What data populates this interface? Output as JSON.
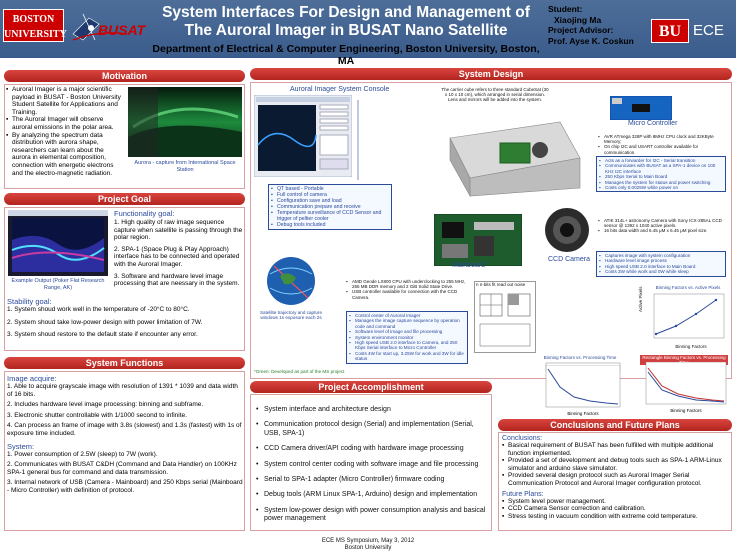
{
  "header": {
    "bu_logo": "BOSTON\nUNIVERSITY",
    "busat": "BUSAT",
    "title": "System Interfaces For Design and Management of The Auroral Imager in BUSAT Nano Satellite",
    "department": "Department of Electrical & Computer Engineering, Boston University, Boston, MA",
    "student_label": "Student:",
    "student_name": "Xiaojing Ma",
    "advisor_label": "Project Advisor:",
    "advisor_name": "Prof. Ayse K. Coskun",
    "bu_short": "BU",
    "ece": "ECE"
  },
  "motivation": {
    "heading": "Motivation",
    "bullets": [
      "Auroral Imager is a major scientific payload in BUSAT - Boston University Student Satellite for Applications and Training.",
      "The Auroral Imager will observe auroral emissions in the polar area.",
      "By analyzing the spectrum data distribution with aurora shape, researchers can learn about the aurora in elemental composition, connection with energetic electrons and the electro-magnetic radiation."
    ],
    "caption": "Aurora - capture from International Space Station"
  },
  "goal": {
    "heading": "Project Goal",
    "functionality_label": "Functionality goal:",
    "functionality": [
      "1. High quality of raw image sequence capture when satellite is passing through the polar region.",
      "2. SPA-1 (Space Plug & Play Approach) interface has to be connected and operated with the Auroral Imager.",
      "3. Software and hardware level image processing that are neessary in the system."
    ],
    "example_caption": "Example Output (Poker Flat Research Range, AK)",
    "stability_label": "Stability goal:",
    "stability": [
      "1. System shoud work well in the temperature of -20°C to 80°C.",
      "2. System shoud take low-power design with power limitation of 7W.",
      "3. System shoud restore to the default state if encounter any error."
    ]
  },
  "functions": {
    "heading": "System Functions",
    "acquire_label": "Image acquire:",
    "acquire": [
      "1. Able to acquire grayscale image with resolution of 1391 * 1039 and data width of 16 bits.",
      "2. Includes hardware level image processing: binning and subframe.",
      "3. Electronic shutter controllable with 1/1000 second to infinite.",
      "4. Can process an frame of image with 3.8s (slowest) and 1.3s (fastest) with 1s of exposure time included."
    ],
    "system_label": "System:",
    "system": [
      "1. Power consumption of 2.5W (sleep) to 7W (work).",
      "2. Communicates with BUSAT C&DH (Command and Data Handler) on 100KHz SPA-1 general bus for command and data transmission.",
      "3. Internal network of USB (Camera - Mainboard) and 250 Kbps serial (Mainboard - Micro Controller) with definition of protocol."
    ]
  },
  "design": {
    "heading": "System Design",
    "console_title": "Auroral Imager System Console",
    "cube_note": "The carrier cube refers to three standard CubeSat (30 x 10 x 10 cm), which arranged in serial dimension. Lens and mirrors will be added into the system.",
    "micro_label": "Micro Controller",
    "micro_specs": [
      "AVR ATmega 328P with 8MHz CPU clock and 32KByte Memory;",
      "On chip I2C and USART controller available for communication."
    ],
    "micro_box": [
      "Acts as a forwarder for I2C - Serial transition",
      "Communicates with BUSAT as a SPA-1 device on 100 KHz I2C interface",
      "250 Kbps Serial to Main Board",
      "Manages the system for status and power switching",
      "Costs only 0.0025W while power on"
    ],
    "console_box": [
      "QT based - Portable",
      "Full control of camera",
      "Configuration save and load",
      "Communication prepare and receive",
      "Temperature surveillance of CCD Sensor and trigger of peltier cooler",
      "Debug tools included"
    ],
    "camera_label": "CCD Camera",
    "camera_specs": [
      "ATIK 314L+ astronomy Camera with Sony ICX-285AL CCD sensor @ 1392 x 1040 active pixels.",
      "16 bits data width and 6.45 μM x 6.45 μM pixel size."
    ],
    "camera_box": [
      "Captures image with system configuration",
      "Hardware level image process",
      "High speed USB 2.0 interface to Main Board",
      "Costs 3W while work and 0W while sleep"
    ],
    "mainboard_label": "Mainboard",
    "mainboard_specs": [
      "AMD Geode LX800 CPU with underclocking to 255 MHz, 256 MB DDR memory and 2 GiB Solid State Drive.",
      "USB controller available for connection with the CCD Camera."
    ],
    "mainboard_box": [
      "Control center of Auroral Imager",
      "Manages the image capture sequence by operation code and command",
      "Software level of image and file processing",
      "System environment monitor",
      "High speed USB 2.0 interface to Camera, and 250 Kbps Serial interface to Micro Controller",
      "Costs 4W for start up, 3.25W for work and 3W for idle status"
    ],
    "satellite_caption": "Satellite trajectory and capture windows 1s exposure each 2s",
    "green_note": "*Green: Developed as part of the MS project",
    "diagram_caption": "n  n-bits fit read out noise",
    "graph1_title": "Binning Factors vs. Active Pixels",
    "graph2_title": "Binning Factors vs. Processing Time",
    "graph3_title": "Rectangle Binning Factors vs. Processing Time",
    "x_label": "Binning Factors",
    "y1_label": "Active Pixels",
    "y2_label": "Processing time (ms)"
  },
  "accomplishment": {
    "heading": "Project Accomplishment",
    "items": [
      "System interface and architecture design",
      "Communication protocol design (Serial) and implementation (Serial, USB, SPA-1)",
      "CCD Camera driver/API coding with hardware image processing",
      "System control center coding with software image and file processing",
      "Serial to SPA-1 adapter (Micro Controller) firmware coding",
      "Debug tools (ARM Linux SPA-1, Arduino) design and implementation",
      "System low-power design with power consumption analysis and basical power management"
    ]
  },
  "conclusions": {
    "heading": "Conclusions and Future Plans",
    "conclusions_label": "Conclusions:",
    "conclusions": [
      "Basical requirement of BUSAT has been fulfilled with multiple additional function implemented.",
      "Provided a set of development and debug tools such as SPA-1 ARM-Linux simulator and arduino slave simulator.",
      "Provided several design protocol such as Auroral Imager Serial Communication Protocol and Auroral Imager configuration protocol."
    ],
    "future_label": "Future Plans:",
    "future": [
      "System level power management.",
      "CCD Camera Sensor correction and calibration.",
      "Stress testing in vacuum condition with extreme cold temperature."
    ]
  },
  "footer": {
    "line1": "ECE MS Symposium, May 3, 2012",
    "line2": "Boston University"
  }
}
